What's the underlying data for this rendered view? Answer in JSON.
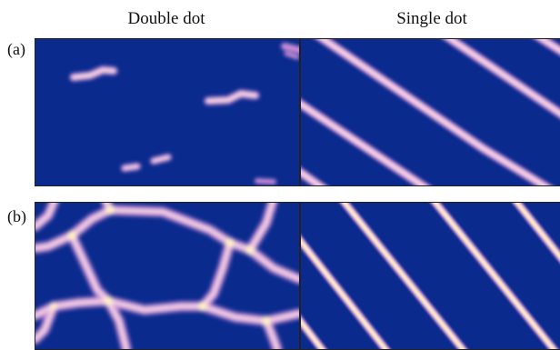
{
  "column_titles": [
    "Double dot",
    "Single dot"
  ],
  "row_labels": [
    "(a)",
    "(b)"
  ],
  "colors": {
    "background": "#0a2a8e",
    "line_glow": "#c98bd6",
    "line_core": "#f6d9e4",
    "line_hot": "#fff0c8"
  }
}
